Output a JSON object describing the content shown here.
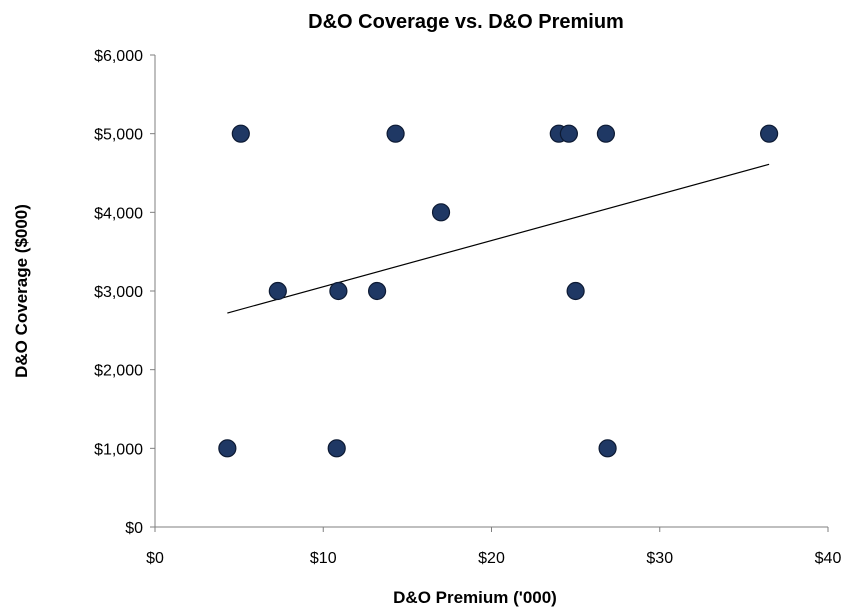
{
  "chart_data": {
    "type": "scatter",
    "title": "D&O Coverage vs. D&O Premium",
    "xlabel": "D&O Premium ('000)",
    "ylabel": "D&O Coverage ($000)",
    "xlim": [
      0,
      40
    ],
    "ylim": [
      0,
      6000
    ],
    "x_ticks": [
      "$0",
      "$10",
      "$20",
      "$30",
      "$40"
    ],
    "y_ticks": [
      "$0",
      "$1,000",
      "$2,000",
      "$3,000",
      "$4,000",
      "$5,000",
      "$6,000"
    ],
    "x_tick_values": [
      0,
      10,
      20,
      30,
      40
    ],
    "y_tick_values": [
      0,
      1000,
      2000,
      3000,
      4000,
      5000,
      6000
    ],
    "grid": false,
    "legend": "none",
    "series": [
      {
        "points": [
          {
            "x": 4.3,
            "y": 1000
          },
          {
            "x": 5.1,
            "y": 5000
          },
          {
            "x": 7.3,
            "y": 3000
          },
          {
            "x": 10.8,
            "y": 1000
          },
          {
            "x": 10.9,
            "y": 3000
          },
          {
            "x": 13.2,
            "y": 3000
          },
          {
            "x": 14.3,
            "y": 5000
          },
          {
            "x": 17.0,
            "y": 4000
          },
          {
            "x": 24.0,
            "y": 5000
          },
          {
            "x": 24.6,
            "y": 5000
          },
          {
            "x": 25.0,
            "y": 3000
          },
          {
            "x": 26.8,
            "y": 5000
          },
          {
            "x": 26.9,
            "y": 1000
          },
          {
            "x": 36.5,
            "y": 5000
          }
        ],
        "color": "#1f3864"
      }
    ],
    "trendline": {
      "type": "linear",
      "x": [
        4.3,
        36.5
      ],
      "y": [
        2720,
        4610
      ],
      "color": "#000000"
    }
  }
}
